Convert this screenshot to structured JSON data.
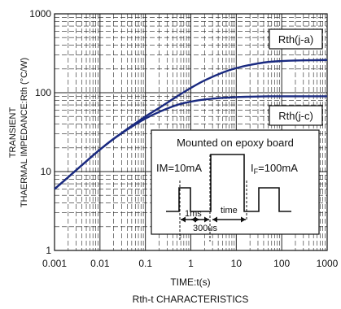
{
  "chart_data": {
    "type": "line",
    "title": "Rth-t CHARACTERISTICS",
    "xlabel": "TIME:t(s)",
    "ylabel_line1": "TRANSIENT",
    "ylabel_line2": "THAERMAL IMPEDANCE:Rth (°C/W)",
    "x_scale": "log",
    "y_scale": "log",
    "xlim": [
      0.001,
      1000
    ],
    "ylim": [
      1,
      1000
    ],
    "x_ticks": [
      {
        "value": 0.001,
        "label": "0.001"
      },
      {
        "value": 0.01,
        "label": "0.01"
      },
      {
        "value": 0.1,
        "label": "0.1"
      },
      {
        "value": 1,
        "label": "1"
      },
      {
        "value": 10,
        "label": "10"
      },
      {
        "value": 100,
        "label": "100"
      },
      {
        "value": 1000,
        "label": "1000"
      }
    ],
    "y_ticks": [
      {
        "value": 1,
        "label": "1"
      },
      {
        "value": 10,
        "label": "10"
      },
      {
        "value": 100,
        "label": "100"
      },
      {
        "value": 1000,
        "label": "1000"
      }
    ],
    "grid": true,
    "series_color": "#1a2a80",
    "series": [
      {
        "name": "Rth(j-a)",
        "x": [
          0.001,
          0.002,
          0.005,
          0.01,
          0.02,
          0.05,
          0.1,
          0.2,
          0.5,
          1,
          2,
          5,
          10,
          20,
          50,
          100,
          200,
          500,
          1000
        ],
        "y": [
          6,
          8.5,
          13.5,
          19,
          26,
          38,
          50,
          64,
          90,
          115,
          143,
          180,
          205,
          225,
          245,
          252,
          256,
          258,
          260
        ]
      },
      {
        "name": "Rth(j-c)",
        "x": [
          0.001,
          0.002,
          0.005,
          0.01,
          0.02,
          0.05,
          0.1,
          0.2,
          0.5,
          1,
          2,
          5,
          10,
          20,
          50,
          100,
          200,
          500,
          1000
        ],
        "y": [
          6,
          8.5,
          13.5,
          19,
          26,
          37,
          47,
          57,
          70,
          77,
          82,
          86,
          88,
          89,
          90,
          90,
          90,
          90,
          90
        ]
      }
    ],
    "inset": {
      "heading": "Mounted on epoxy board",
      "im_label": "IM=10mA",
      "if_label_prefix": "I",
      "if_label_sub": "F",
      "if_label_suffix": "=100mA",
      "label_1ms": "1ms",
      "label_time": "time",
      "label_300us": "300us"
    }
  }
}
